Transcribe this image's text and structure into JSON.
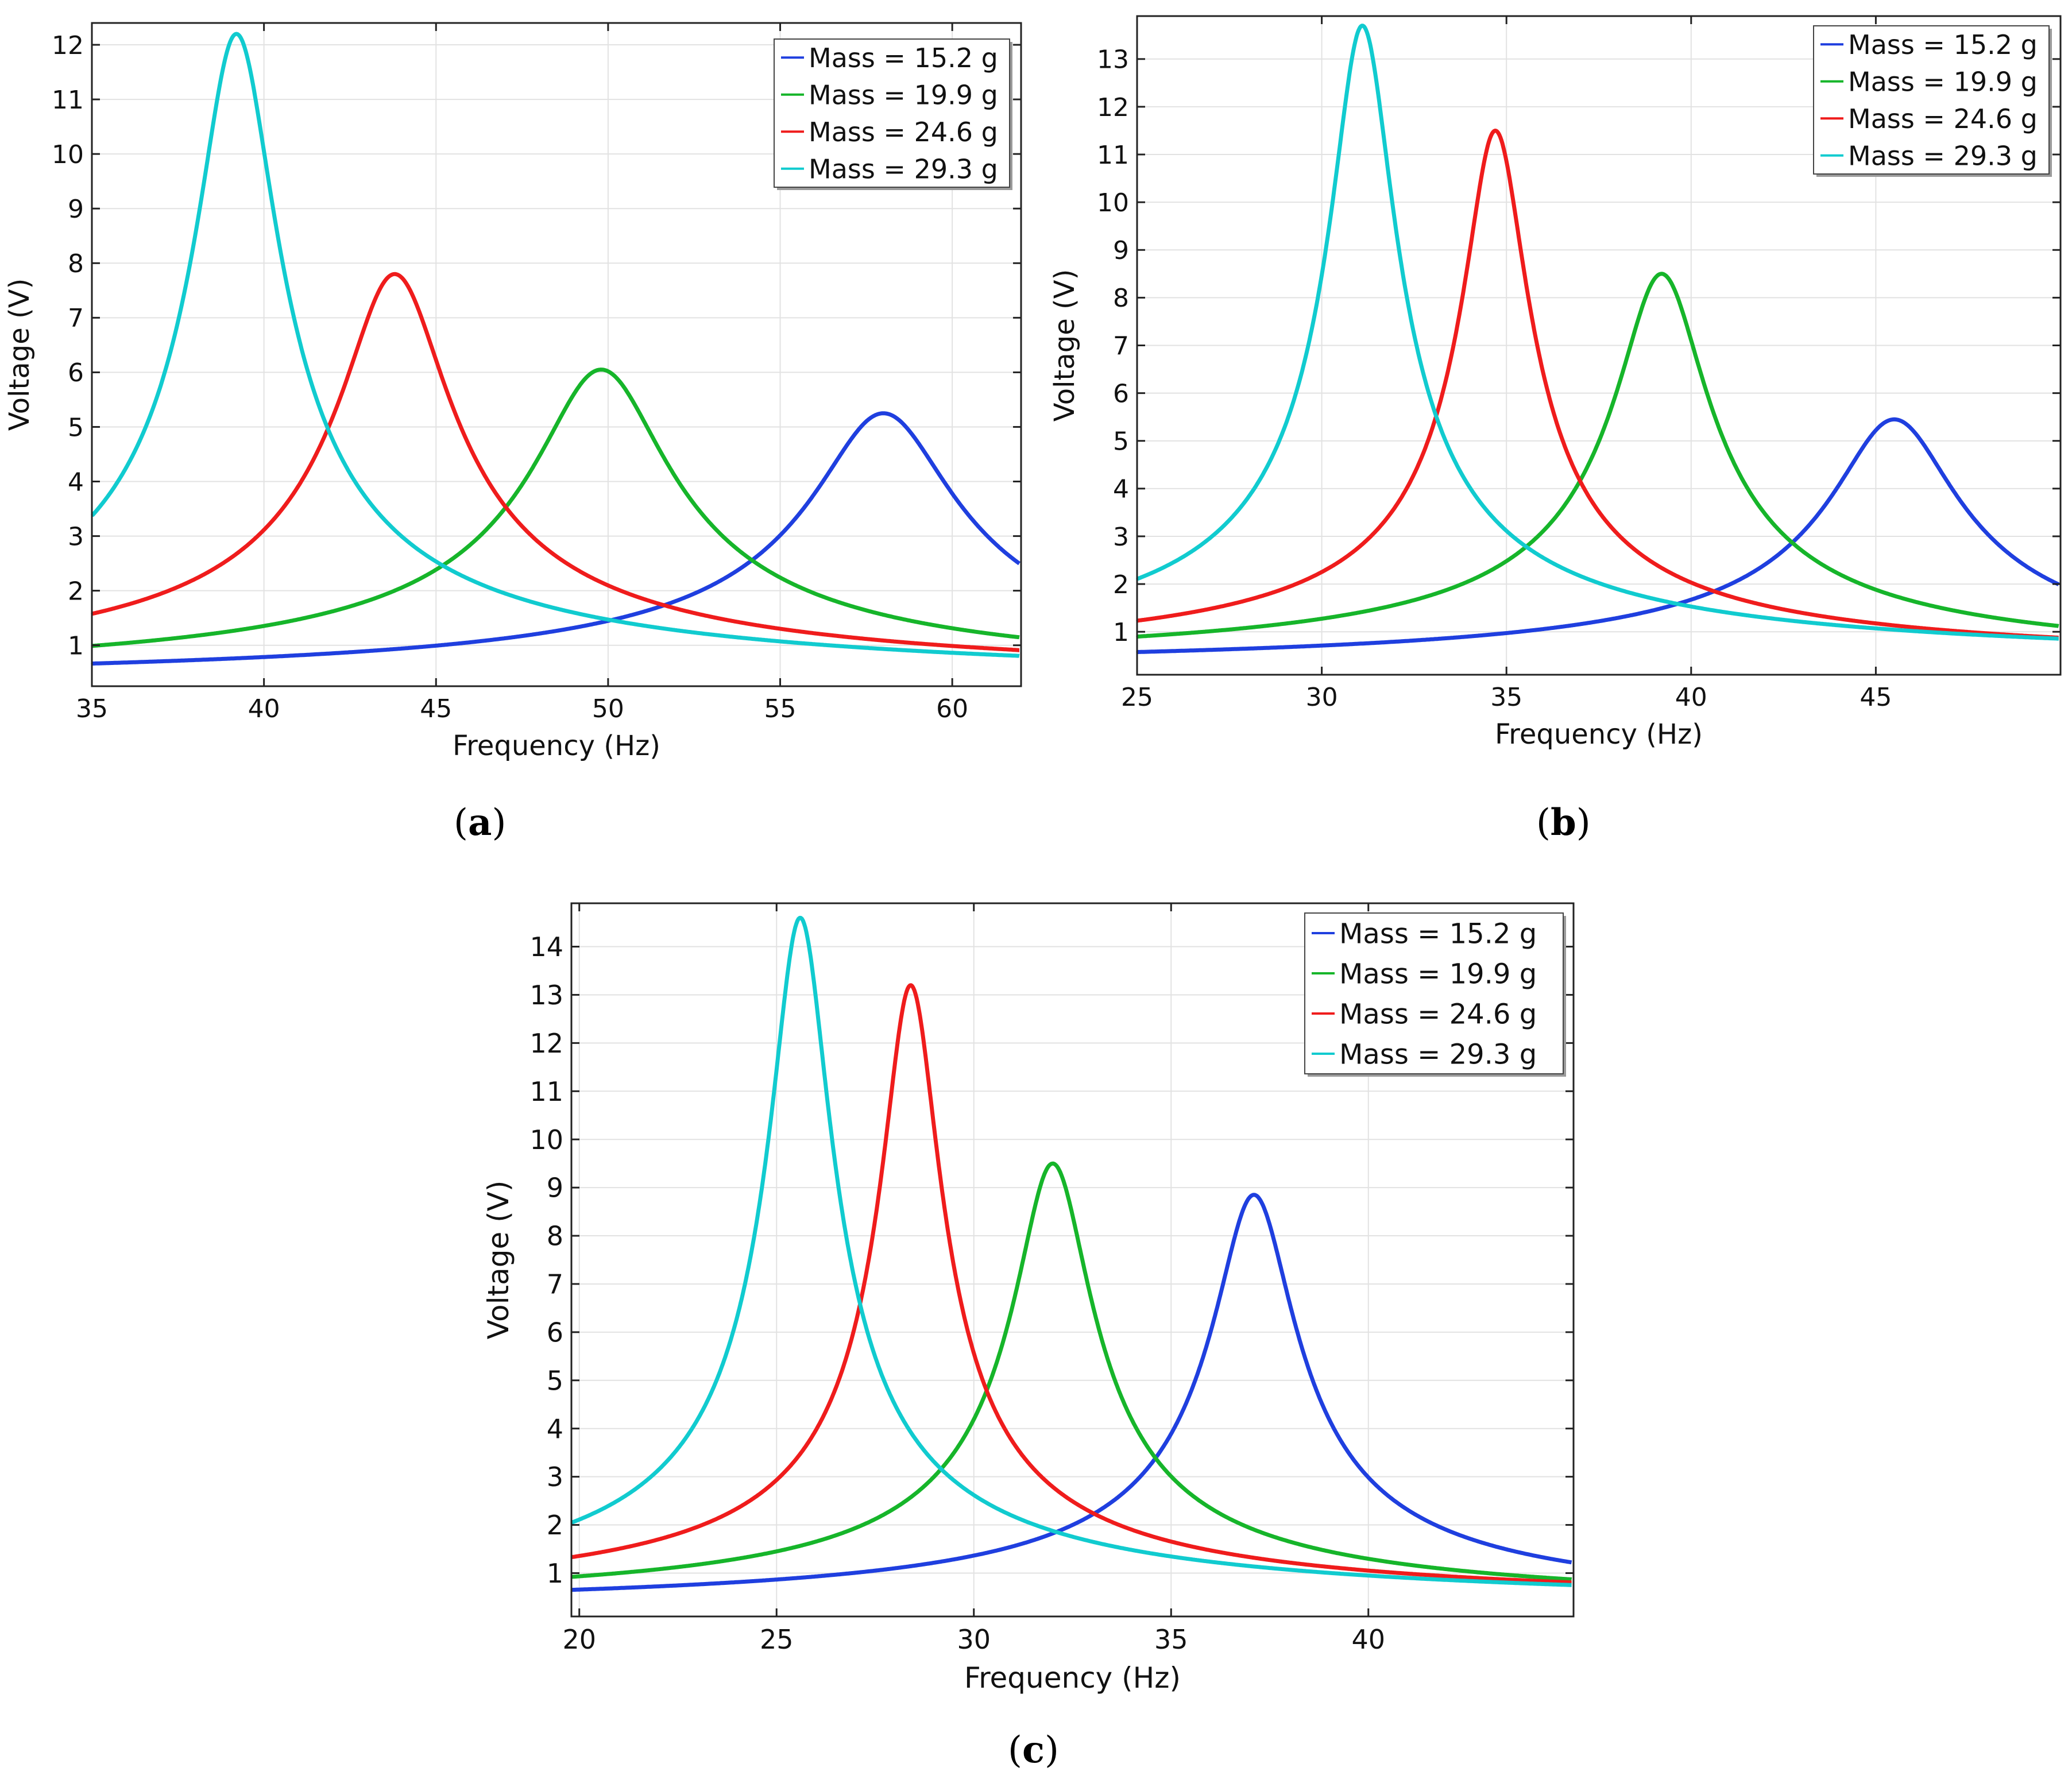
{
  "chart_data": [
    {
      "type": "line",
      "panel_label": "a",
      "title": "",
      "xlabel": "Frequency (Hz)",
      "ylabel": "Voltage  (V)",
      "xlim": [
        35,
        62
      ],
      "ylim": [
        0.25,
        12.4
      ],
      "xticks": [
        35,
        40,
        45,
        50,
        55,
        60
      ],
      "yticks": [
        1,
        2,
        3,
        4,
        5,
        6,
        7,
        8,
        9,
        10,
        11,
        12
      ],
      "grid": true,
      "legend_position": "top-right",
      "series": [
        {
          "name": "Mass = 15.2 g",
          "color": "#1f3fdf",
          "base": 0.23,
          "peak_x": 58.0,
          "peak_y": 5.25,
          "half_width": 2.0
        },
        {
          "name": "Mass = 19.9 g",
          "color": "#16b52a",
          "base": 0.25,
          "peak_x": 49.8,
          "peak_y": 6.05,
          "half_width": 1.9
        },
        {
          "name": "Mass = 24.6 g",
          "color": "#ef1c1c",
          "base": 0.27,
          "peak_x": 43.8,
          "peak_y": 7.8,
          "half_width": 1.55
        },
        {
          "name": "Mass = 29.3 g",
          "color": "#11cbcf",
          "base": 0.2,
          "peak_x": 39.2,
          "peak_y": 12.2,
          "half_width": 1.15
        }
      ]
    },
    {
      "type": "line",
      "panel_label": "b",
      "title": "",
      "xlabel": "Frequency (Hz)",
      "ylabel": "Voltage (V)",
      "xlim": [
        25,
        50
      ],
      "ylim": [
        0.1,
        13.9
      ],
      "xticks": [
        25,
        30,
        35,
        40,
        45
      ],
      "yticks": [
        1,
        2,
        3,
        4,
        5,
        6,
        7,
        8,
        9,
        10,
        11,
        12,
        13
      ],
      "grid": true,
      "legend_position": "top-right",
      "series": [
        {
          "name": "Mass = 15.2 g",
          "color": "#1f3fdf",
          "base": 0.15,
          "peak_x": 45.5,
          "peak_y": 5.45,
          "half_width": 1.65
        },
        {
          "name": "Mass = 19.9 g",
          "color": "#16b52a",
          "base": 0.2,
          "peak_x": 39.2,
          "peak_y": 8.5,
          "half_width": 1.2
        },
        {
          "name": "Mass = 24.6 g",
          "color": "#ef1c1c",
          "base": 0.25,
          "peak_x": 34.7,
          "peak_y": 11.5,
          "half_width": 0.85
        },
        {
          "name": "Mass = 29.3 g",
          "color": "#11cbcf",
          "base": 0.25,
          "peak_x": 31.1,
          "peak_y": 13.7,
          "half_width": 0.85
        }
      ]
    },
    {
      "type": "line",
      "panel_label": "c",
      "title": "",
      "xlabel": "Frequency (Hz)",
      "ylabel": "Voltage (V)",
      "xlim": [
        19.8,
        45.2
      ],
      "ylim": [
        0.1,
        14.9
      ],
      "xticks": [
        20,
        25,
        30,
        35,
        40
      ],
      "yticks": [
        1,
        2,
        3,
        4,
        5,
        6,
        7,
        8,
        9,
        10,
        11,
        12,
        13,
        14
      ],
      "grid": true,
      "legend_position": "top-right",
      "series": [
        {
          "name": "Mass = 15.2 g",
          "color": "#1f3fdf",
          "base": 0.15,
          "peak_x": 37.1,
          "peak_y": 8.85,
          "half_width": 1.0
        },
        {
          "name": "Mass = 19.9 g",
          "color": "#16b52a",
          "base": 0.2,
          "peak_x": 32.0,
          "peak_y": 9.5,
          "half_width": 0.95
        },
        {
          "name": "Mass = 24.6 g",
          "color": "#ef1c1c",
          "base": 0.25,
          "peak_x": 28.4,
          "peak_y": 13.2,
          "half_width": 0.72
        },
        {
          "name": "Mass = 29.3 g",
          "color": "#11cbcf",
          "base": 0.2,
          "peak_x": 25.6,
          "peak_y": 14.6,
          "half_width": 0.75
        }
      ]
    }
  ],
  "captions": {
    "a": "a",
    "b": "b",
    "c": "c"
  }
}
